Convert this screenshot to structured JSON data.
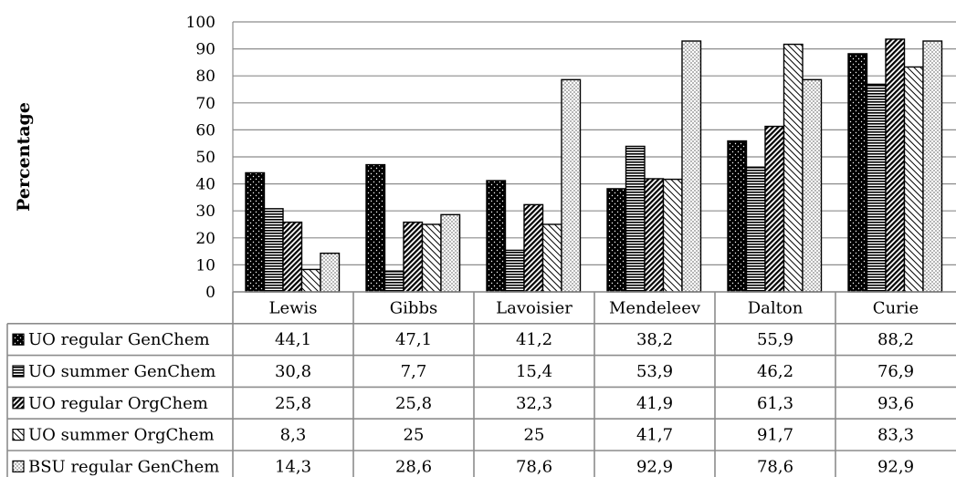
{
  "chart_data": {
    "type": "bar",
    "ylabel": "Percentage",
    "ylim": [
      0,
      100
    ],
    "yticks": [
      0,
      10,
      20,
      30,
      40,
      50,
      60,
      70,
      80,
      90,
      100
    ],
    "grid": true,
    "legend": "data-table-below",
    "categories": [
      "Lewis",
      "Gibbs",
      "Lavoisier",
      "Mendeleev",
      "Dalton",
      "Curie"
    ],
    "series": [
      {
        "name": "UO regular GenChem",
        "pattern": "black-dots",
        "values": [
          44.1,
          47.1,
          41.2,
          38.2,
          55.9,
          88.2
        ],
        "labels": [
          "44,1",
          "47,1",
          "41,2",
          "38,2",
          "55,9",
          "88,2"
        ]
      },
      {
        "name": "UO summer GenChem",
        "pattern": "horizontal-lines",
        "values": [
          30.8,
          7.7,
          15.4,
          53.9,
          46.2,
          76.9
        ],
        "labels": [
          "30,8",
          "7,7",
          "15,4",
          "53,9",
          "46,2",
          "76,9"
        ]
      },
      {
        "name": "UO regular OrgChem",
        "pattern": "dense-diagonal",
        "values": [
          25.8,
          25.8,
          32.3,
          41.9,
          61.3,
          93.6
        ],
        "labels": [
          "25,8",
          "25,8",
          "32,3",
          "41,9",
          "61,3",
          "93,6"
        ]
      },
      {
        "name": "UO summer OrgChem",
        "pattern": "light-diagonal",
        "values": [
          8.3,
          25,
          25,
          41.7,
          91.7,
          83.3
        ],
        "labels": [
          "8,3",
          "25",
          "25",
          "41,7",
          "91,7",
          "83,3"
        ]
      },
      {
        "name": "BSU regular GenChem",
        "pattern": "light-dots",
        "values": [
          14.3,
          28.6,
          78.6,
          92.9,
          78.6,
          92.9
        ],
        "labels": [
          "14,3",
          "28,6",
          "78,6",
          "92,9",
          "78,6",
          "92,9"
        ]
      }
    ]
  }
}
